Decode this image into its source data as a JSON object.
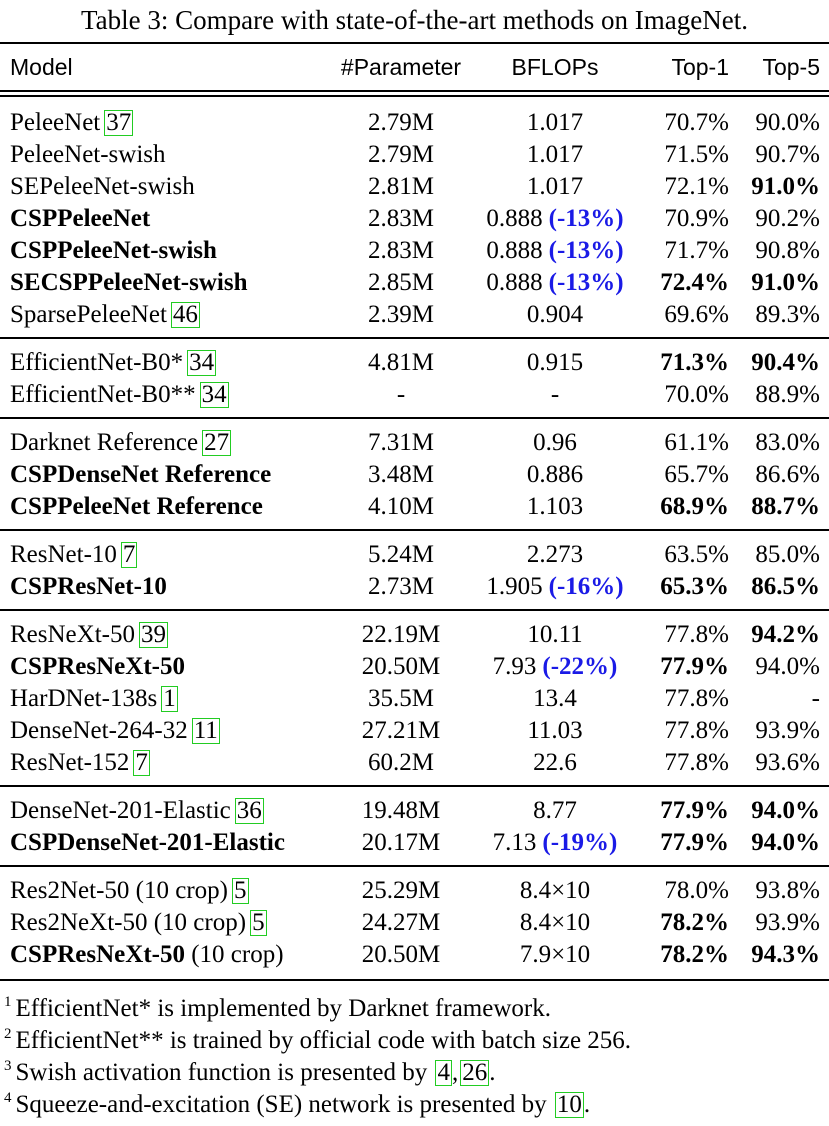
{
  "caption": "Table 3: Compare with state-of-the-art methods on ImageNet.",
  "headers": {
    "model": "Model",
    "params": "#Parameter",
    "flops": "BFLOPs",
    "top1": "Top-1",
    "top5": "Top-5"
  },
  "rows": [
    {
      "model": "PeleeNet",
      "ref": "37",
      "params": "2.79M",
      "flops": "1.017",
      "top1": "70.7%",
      "top5": "90.0%"
    },
    {
      "model": "PeleeNet-swish",
      "params": "2.79M",
      "flops": "1.017",
      "top1": "71.5%",
      "top5": "90.7%"
    },
    {
      "model": "SEPeleeNet-swish",
      "params": "2.81M",
      "flops": "1.017",
      "top1": "72.1%",
      "top5": "91.0%",
      "top5_bold": true
    },
    {
      "model": "CSPPeleeNet",
      "bold": true,
      "params": "2.83M",
      "flops": "0.888",
      "delta": "(-13%)",
      "top1": "70.9%",
      "top5": "90.2%"
    },
    {
      "model": "CSPPeleeNet-swish",
      "bold": true,
      "params": "2.83M",
      "flops": "0.888",
      "delta": "(-13%)",
      "top1": "71.7%",
      "top5": "90.8%"
    },
    {
      "model": "SECSPPeleeNet-swish",
      "bold": true,
      "params": "2.85M",
      "flops": "0.888",
      "delta": "(-13%)",
      "top1": "72.4%",
      "top1_bold": true,
      "top5": "91.0%",
      "top5_bold": true
    },
    {
      "model": "SparsePeleeNet",
      "ref": "46",
      "params": "2.39M",
      "flops": "0.904",
      "top1": "69.6%",
      "top5": "89.3%",
      "sep": true
    },
    {
      "model": "EfficientNet-B0*",
      "ref": "34",
      "params": "4.81M",
      "flops": "0.915",
      "top1": "71.3%",
      "top1_bold": true,
      "top5": "90.4%",
      "top5_bold": true
    },
    {
      "model": "EfficientNet-B0**",
      "ref": "34",
      "params": "-",
      "flops": "-",
      "top1": "70.0%",
      "top5": "88.9%",
      "sep": true
    },
    {
      "model": "Darknet Reference",
      "ref": "27",
      "params": "7.31M",
      "flops": "0.96",
      "top1": "61.1%",
      "top5": "83.0%"
    },
    {
      "model": "CSPDenseNet Reference",
      "bold": true,
      "params": "3.48M",
      "flops": "0.886",
      "top1": "65.7%",
      "top5": "86.6%"
    },
    {
      "model": "CSPPeleeNet Reference",
      "bold": true,
      "params": "4.10M",
      "flops": "1.103",
      "top1": "68.9%",
      "top1_bold": true,
      "top5": "88.7%",
      "top5_bold": true,
      "sep": true
    },
    {
      "model": "ResNet-10",
      "ref": "7",
      "params": "5.24M",
      "flops": "2.273",
      "top1": "63.5%",
      "top5": "85.0%"
    },
    {
      "model": "CSPResNet-10",
      "bold": true,
      "params": "2.73M",
      "flops": "1.905",
      "delta": "(-16%)",
      "top1": "65.3%",
      "top1_bold": true,
      "top5": "86.5%",
      "top5_bold": true,
      "sep": true
    },
    {
      "model": "ResNeXt-50",
      "ref": "39",
      "params": "22.19M",
      "flops": "10.11",
      "top1": "77.8%",
      "top5": "94.2%",
      "top5_bold": true
    },
    {
      "model": "CSPResNeXt-50",
      "bold": true,
      "params": "20.50M",
      "flops": "7.93",
      "delta": "(-22%)",
      "top1": "77.9%",
      "top1_bold": true,
      "top5": "94.0%"
    },
    {
      "model": "HarDNet-138s",
      "ref": "1",
      "params": "35.5M",
      "flops": "13.4",
      "top1": "77.8%",
      "top5": "-"
    },
    {
      "model": "DenseNet-264-32",
      "ref": "11",
      "params": "27.21M",
      "flops": "11.03",
      "top1": "77.8%",
      "top5": "93.9%"
    },
    {
      "model": "ResNet-152",
      "ref": "7",
      "params": "60.2M",
      "flops": "22.6",
      "top1": "77.8%",
      "top5": "93.6%",
      "sep": true
    },
    {
      "model": "DenseNet-201-Elastic",
      "ref": "36",
      "params": "19.48M",
      "flops": "8.77",
      "top1": "77.9%",
      "top1_bold": true,
      "top5": "94.0%",
      "top5_bold": true
    },
    {
      "model": "CSPDenseNet-201-Elastic",
      "bold": true,
      "params": "20.17M",
      "flops": "7.13",
      "delta": "(-19%)",
      "top1": "77.9%",
      "top1_bold": true,
      "top5": "94.0%",
      "top5_bold": true,
      "sep": true
    },
    {
      "model": "Res2Net-50 (10 crop)",
      "ref": "5",
      "params": "25.29M",
      "flops": "8.4×10",
      "top1": "78.0%",
      "top5": "93.8%"
    },
    {
      "model": "Res2NeXt-50 (10 crop)",
      "ref": "5",
      "params": "24.27M",
      "flops": "8.4×10",
      "top1": "78.2%",
      "top1_bold": true,
      "top5": "93.9%"
    },
    {
      "model": "CSPResNeXt-50",
      "bold": true,
      "suffix": "(10 crop)",
      "params": "20.50M",
      "flops": "7.9×10",
      "top1": "78.2%",
      "top1_bold": true,
      "top5": "94.3%",
      "top5_bold": true
    }
  ],
  "footnotes": [
    {
      "mark": "1",
      "text": "EfficientNet* is implemented by Darknet framework."
    },
    {
      "mark": "2",
      "text": "EfficientNet** is trained by official code with batch size 256."
    },
    {
      "mark": "3",
      "text": "Swish activation function is presented by",
      "refs": [
        "4",
        "26"
      ],
      "tail": "."
    },
    {
      "mark": "4",
      "text": "Squeeze-and-excitation (SE) network is presented by",
      "refs": [
        "10"
      ],
      "tail": "."
    }
  ]
}
